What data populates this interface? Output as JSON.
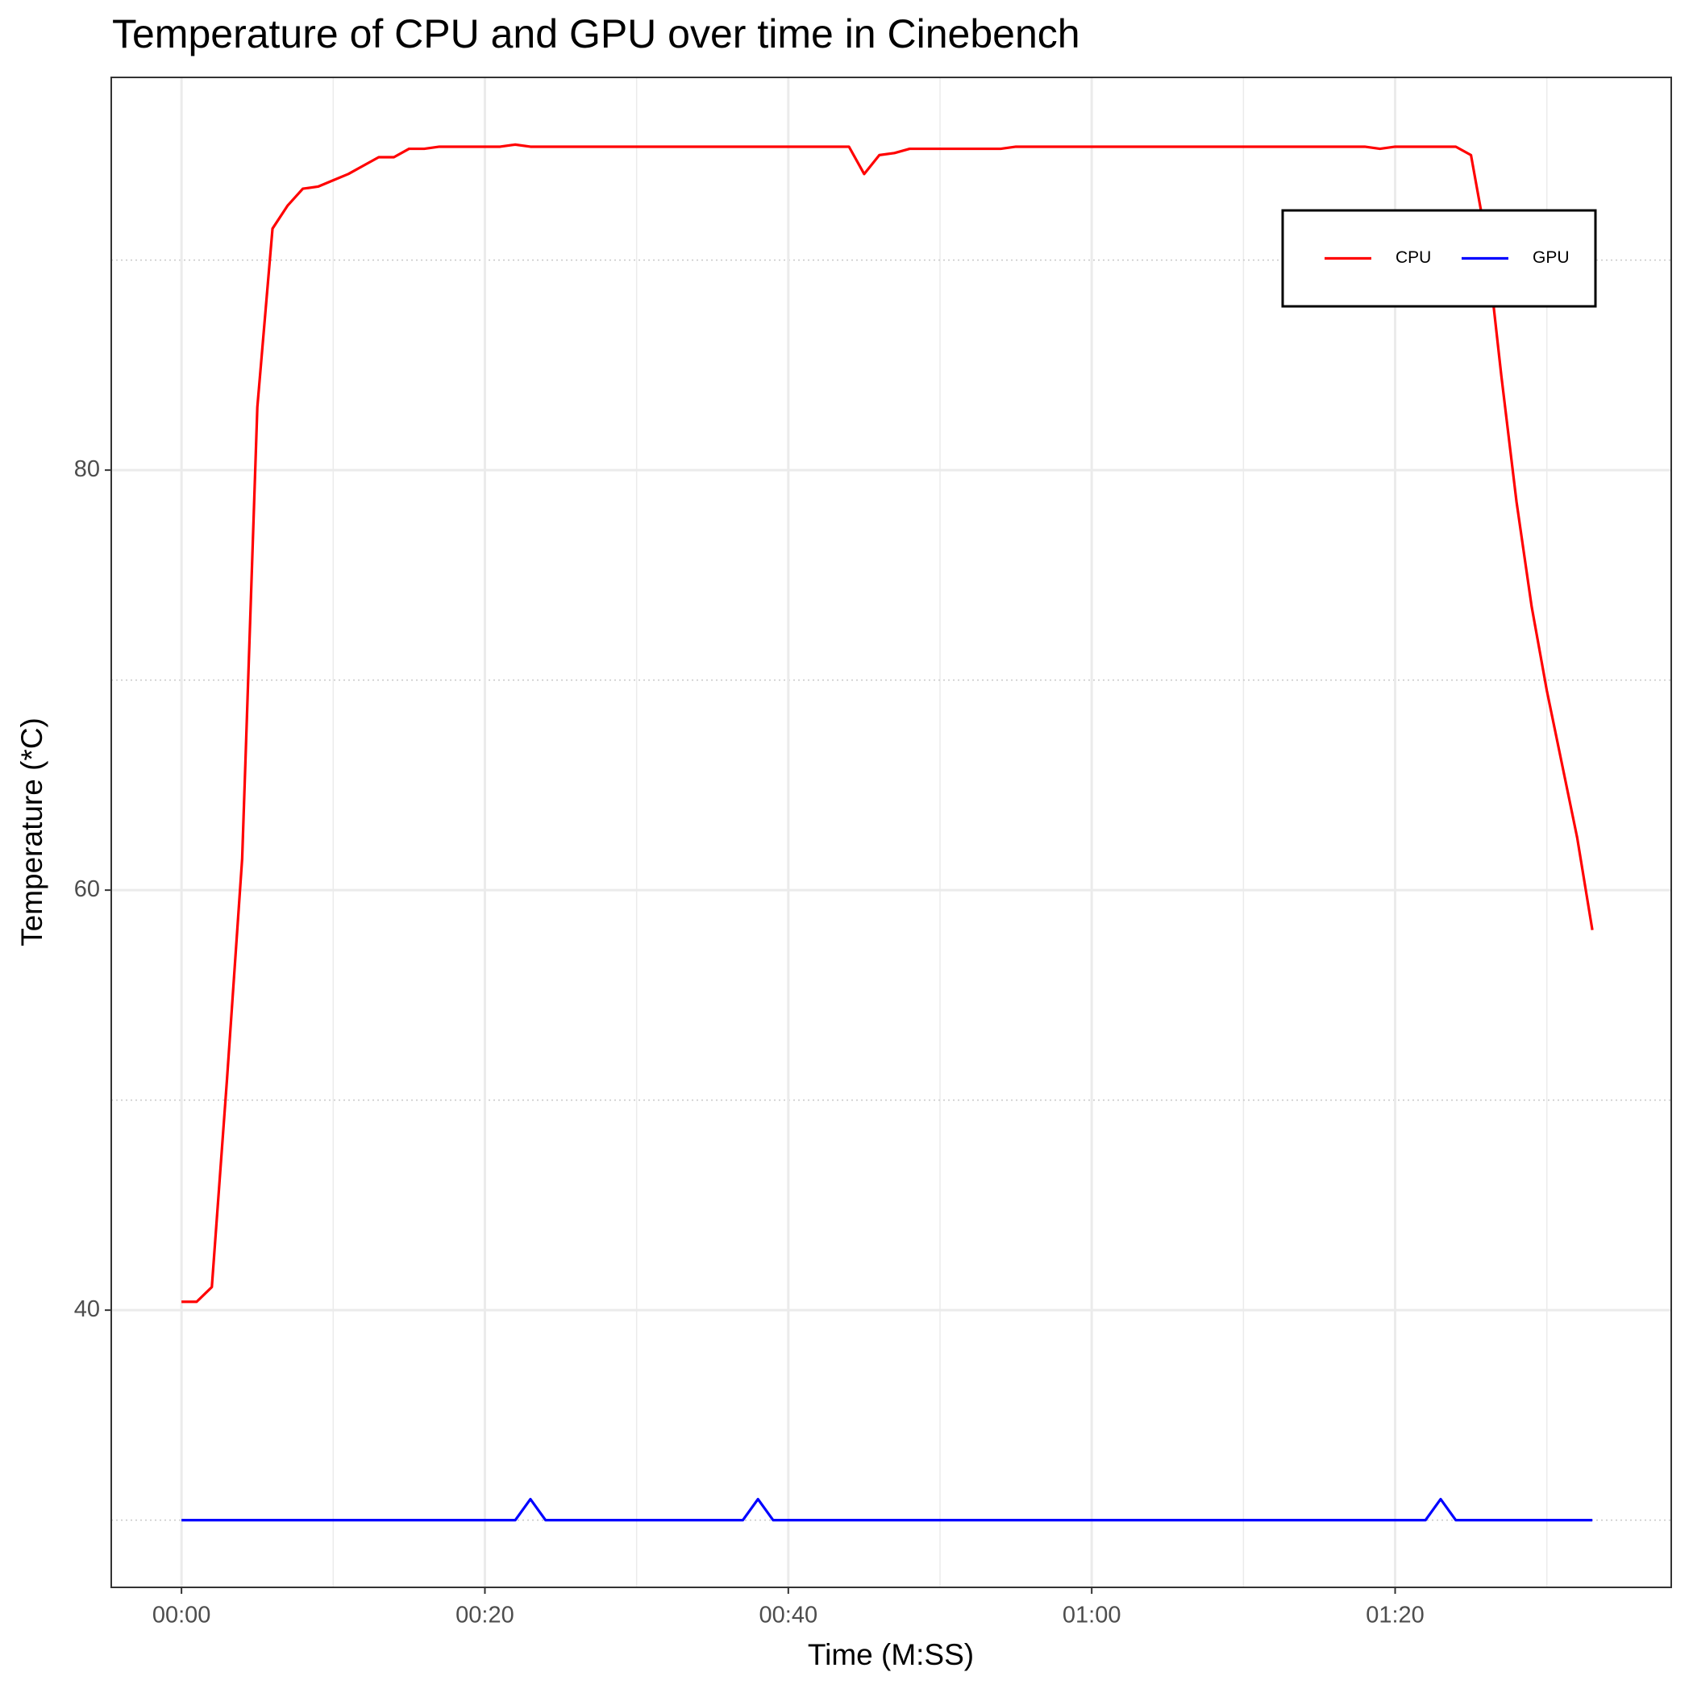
{
  "chart_data": {
    "type": "line",
    "title": "Temperature of CPU and GPU over time in Cinebench",
    "x_label": "Time (M:SS)",
    "y_label": "Temperature (*C)",
    "x": [
      0,
      1,
      2,
      3,
      4,
      5,
      6,
      7,
      8,
      9,
      10,
      11,
      12,
      13,
      14,
      15,
      16,
      17,
      18,
      19,
      20,
      21,
      22,
      23,
      24,
      25,
      26,
      27,
      28,
      29,
      30,
      31,
      32,
      33,
      34,
      35,
      36,
      37,
      38,
      39,
      40,
      41,
      42,
      43,
      44,
      45,
      46,
      47,
      48,
      49,
      50,
      51,
      52,
      53,
      54,
      55,
      56,
      57,
      58,
      59,
      60,
      61,
      62,
      63,
      64,
      65,
      66,
      67,
      68,
      69,
      70,
      71,
      72,
      73,
      74,
      75,
      76,
      77,
      78,
      79,
      80,
      81,
      82,
      83,
      84,
      85,
      86,
      87,
      88,
      89,
      90,
      91,
      92,
      93
    ],
    "series": [
      {
        "name": "CPU",
        "color": "#ff0000",
        "values": [
          40.4,
          40.4,
          41.1,
          51,
          61.5,
          83,
          91.5,
          92.6,
          93.4,
          93.5,
          93.8,
          94.1,
          94.5,
          94.9,
          94.9,
          95.3,
          95.3,
          95.4,
          95.4,
          95.4,
          95.4,
          95.4,
          95.5,
          95.4,
          95.4,
          95.4,
          95.4,
          95.4,
          95.4,
          95.4,
          95.4,
          95.4,
          95.4,
          95.4,
          95.4,
          95.4,
          95.4,
          95.4,
          95.4,
          95.4,
          95.4,
          95.4,
          95.4,
          95.4,
          95.4,
          94.1,
          95.0,
          95.1,
          95.3,
          95.3,
          95.3,
          95.3,
          95.3,
          95.3,
          95.3,
          95.4,
          95.4,
          95.4,
          95.4,
          95.4,
          95.4,
          95.4,
          95.4,
          95.4,
          95.4,
          95.4,
          95.4,
          95.4,
          95.4,
          95.4,
          95.4,
          95.4,
          95.4,
          95.4,
          95.4,
          95.4,
          95.4,
          95.4,
          95.4,
          95.3,
          95.4,
          95.4,
          95.4,
          95.4,
          95.4,
          95.0,
          91,
          84.5,
          78.5,
          73.5,
          69.5,
          66,
          62.5,
          58.1
        ]
      },
      {
        "name": "GPU",
        "color": "#0000ff",
        "values": [
          30,
          30,
          30,
          30,
          30,
          30,
          30,
          30,
          30,
          30,
          30,
          30,
          30,
          30,
          30,
          30,
          30,
          30,
          30,
          30,
          30,
          30,
          30,
          31,
          30,
          30,
          30,
          30,
          30,
          30,
          30,
          30,
          30,
          30,
          30,
          30,
          30,
          30,
          31,
          30,
          30,
          30,
          30,
          30,
          30,
          30,
          30,
          30,
          30,
          30,
          30,
          30,
          30,
          30,
          30,
          30,
          30,
          30,
          30,
          30,
          30,
          30,
          30,
          30,
          30,
          30,
          30,
          30,
          30,
          30,
          30,
          30,
          30,
          30,
          30,
          30,
          30,
          30,
          30,
          30,
          30,
          30,
          30,
          31,
          30,
          30,
          30,
          30,
          30,
          30,
          30,
          30,
          30,
          30
        ]
      }
    ],
    "xlim": [
      -4.63,
      98.2
    ],
    "xticks": [
      {
        "value": 0,
        "label": "00:00"
      },
      {
        "value": 20,
        "label": "00:20"
      },
      {
        "value": 40,
        "label": "00:40"
      },
      {
        "value": 60,
        "label": "01:00"
      },
      {
        "value": 80,
        "label": "01:20"
      }
    ],
    "x_minor_grid": [
      10,
      30,
      50,
      70,
      90
    ],
    "ylim": [
      26.8,
      98.7
    ],
    "yticks": [
      40,
      60,
      80
    ],
    "y_minor_grid": [
      30,
      50,
      70,
      90
    ],
    "grid": true,
    "legend": "top-right"
  }
}
